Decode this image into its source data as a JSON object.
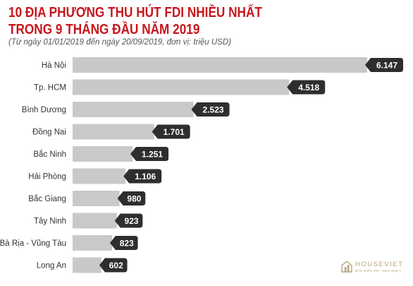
{
  "header": {
    "title_line1": "10 ĐỊA PHƯƠNG THU HÚT FDI NHIỀU NHẤT",
    "title_line2": "TRONG 9 THÁNG ĐẦU NĂM 2019",
    "subtitle": "(Từ ngày 01/01/2019 đến ngày 20/09/2019, đơn vị: triệu USD)"
  },
  "chart_data": {
    "type": "bar",
    "orientation": "horizontal",
    "title": "10 ĐỊA PHƯƠNG THU HÚT FDI NHIỀU NHẤT TRONG 9 THÁNG ĐẦU NĂM 2019",
    "subtitle": "(Từ ngày 01/01/2019 đến ngày 20/09/2019, đơn vị: triệu USD)",
    "categories": [
      "Hà Nội",
      "Tp. HCM",
      "Bình Dương",
      "Đồng Nai",
      "Bắc Ninh",
      "Hải Phòng",
      "Bắc Giang",
      "Tây Ninh",
      "Bà Rịa - Vũng Tàu",
      "Long An"
    ],
    "values": [
      6147,
      4518,
      2523,
      1701,
      1251,
      1106,
      980,
      923,
      823,
      602
    ],
    "value_labels": [
      "6.147",
      "4.518",
      "2.523",
      "1.701",
      "1.251",
      "1.106",
      "980",
      "923",
      "823",
      "602"
    ],
    "xlim": [
      0,
      6147
    ],
    "grid": false,
    "legend": "none",
    "bar_color": "#c9c9c9",
    "label_bg_color": "#2e2e2e"
  },
  "logo": {
    "brand": "HOUSEVIET",
    "tagline": "BẤN MIỄN PHÍ - MUA NHỰT"
  }
}
